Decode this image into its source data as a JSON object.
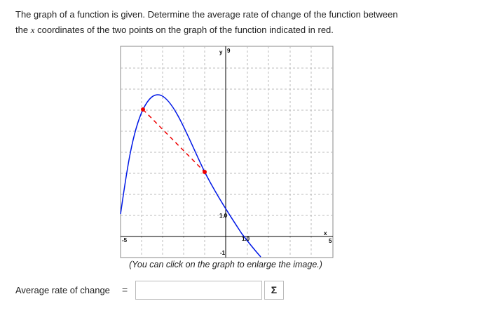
{
  "question": {
    "line1": "The graph of a function is given. Determine the average rate of change of the function between",
    "line2_start": "the",
    "variable": "x",
    "line2_end": "coordinates of the two points on the graph of the function indicated in red."
  },
  "graph": {
    "y_axis_label": "y",
    "y_max_label": "9",
    "y_unit_label": "1.0",
    "y_min_label": "-1",
    "x_axis_label": "x",
    "x_min_label": "-5",
    "x_max_label": "5",
    "x_unit_label": "1.0"
  },
  "caption": "(You can click on the graph to enlarge the image.)",
  "answer": {
    "label": "Average rate of change",
    "equals": "=",
    "button": "Σ"
  }
}
